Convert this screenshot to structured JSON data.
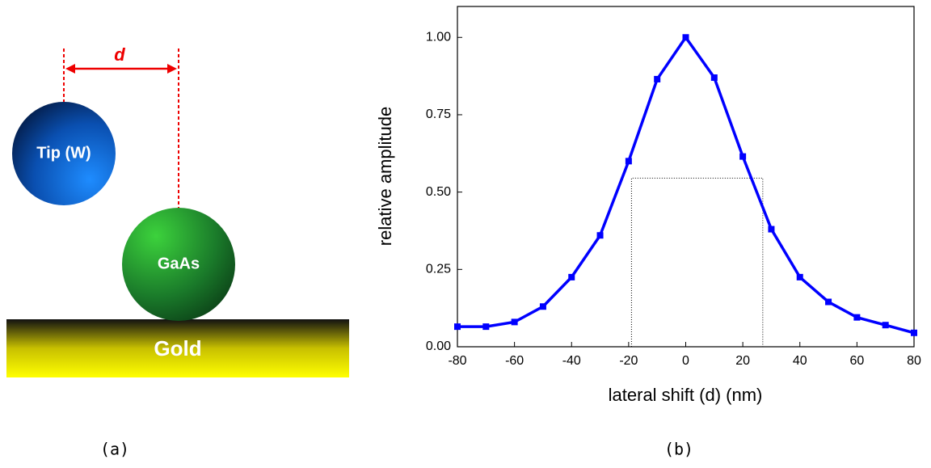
{
  "diagram": {
    "d_label": "d",
    "tip_label": "Tip (W)",
    "gaas_label": "GaAs",
    "gold_label": "Gold",
    "caption": "(a)"
  },
  "chart_data": {
    "type": "line",
    "caption": "(b)",
    "x_label": "lateral shift (d) (nm)",
    "y_label": "relative amplitude",
    "x": [
      -80,
      -70,
      -60,
      -50,
      -40,
      -30,
      -20,
      -10,
      0,
      10,
      20,
      30,
      40,
      50,
      60,
      70,
      80
    ],
    "series": [
      {
        "color": "#0000ff",
        "values": [
          0.065,
          0.065,
          0.08,
          0.13,
          0.225,
          0.36,
          0.6,
          0.865,
          1.0,
          0.87,
          0.615,
          0.38,
          0.225,
          0.145,
          0.095,
          0.07,
          0.045
        ]
      }
    ],
    "xlim": [
      -80,
      80
    ],
    "ylim": [
      0,
      1.1
    ],
    "xticks": [
      -80,
      -60,
      -40,
      -20,
      0,
      20,
      40,
      60,
      80
    ],
    "yticks": [
      {
        "value": 0,
        "label": "0.00"
      },
      {
        "value": 0.25,
        "label": "0.25"
      },
      {
        "value": 0.5,
        "label": "0.50"
      },
      {
        "value": 0.75,
        "label": "0.75"
      },
      {
        "value": 1,
        "label": "1.00"
      }
    ],
    "fwhm_box": {
      "x": [
        -19,
        27
      ],
      "y": 0.545
    }
  }
}
